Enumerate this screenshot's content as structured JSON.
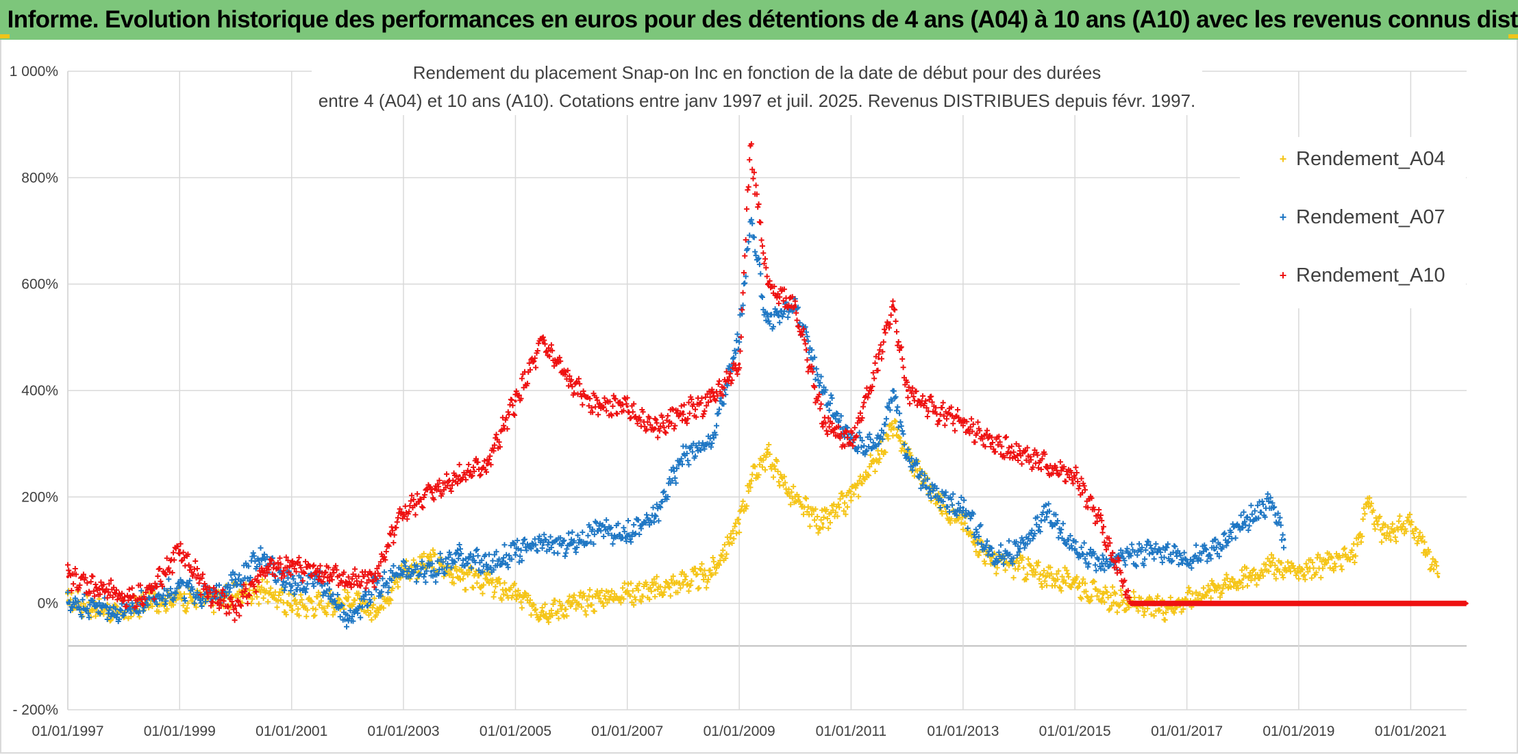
{
  "banner": {
    "text": "ADAM Informe. Evolution historique des performances en euros pour des détentions de 4 ans (A04) à 10 ans (A10) avec les revenus connus distribués"
  },
  "colors": {
    "A04": "#f5c518",
    "A07": "#1f77c4",
    "A10": "#ee1111",
    "banner": "#7dc67b",
    "grid": "#d9d9d9"
  },
  "chart_data": {
    "type": "scatter",
    "title_lines": [
      "Rendement du placement Snap-on Inc en fonction de la date de début pour des durées",
      "entre 4 (A04) et 10 ans (A10). Cotations entre janv 1997 et juil. 2025. Revenus DISTRIBUES depuis févr. 1997."
    ],
    "xlabel": "",
    "ylabel": "",
    "x_range": [
      "1997-01-01",
      "2022-01-01"
    ],
    "x_ticks": [
      "01/01/1997",
      "01/01/1999",
      "01/01/2001",
      "01/01/2003",
      "01/01/2005",
      "01/01/2007",
      "01/01/2009",
      "01/01/2011",
      "01/01/2013",
      "01/01/2015",
      "01/01/2017",
      "01/01/2019",
      "01/01/2021"
    ],
    "y_range": [
      -200,
      1000
    ],
    "y_ticks": [
      {
        "value": -200,
        "label": "- 200%"
      },
      {
        "value": 0,
        "label": "0%"
      },
      {
        "value": 200,
        "label": "200%"
      },
      {
        "value": 400,
        "label": "400%"
      },
      {
        "value": 600,
        "label": "600%"
      },
      {
        "value": 800,
        "label": "800%"
      },
      {
        "value": 1000,
        "label": "1 000%"
      }
    ],
    "grid": true,
    "legend_position": "top-right",
    "marker": "+",
    "series": [
      {
        "name": "Rendement_A04",
        "color": "#f5c518",
        "points": [
          [
            "1997-01-01",
            5
          ],
          [
            "1997-07-01",
            -10
          ],
          [
            "1998-01-01",
            -20
          ],
          [
            "1998-07-01",
            5
          ],
          [
            "1999-01-01",
            10
          ],
          [
            "1999-07-01",
            5
          ],
          [
            "2000-01-01",
            15
          ],
          [
            "2000-07-01",
            25
          ],
          [
            "2001-01-01",
            -5
          ],
          [
            "2001-07-01",
            0
          ],
          [
            "2002-01-01",
            5
          ],
          [
            "2002-07-01",
            -15
          ],
          [
            "2003-01-01",
            60
          ],
          [
            "2003-07-01",
            80
          ],
          [
            "2004-01-01",
            50
          ],
          [
            "2004-07-01",
            40
          ],
          [
            "2005-01-01",
            15
          ],
          [
            "2005-07-01",
            -15
          ],
          [
            "2006-01-01",
            -5
          ],
          [
            "2006-07-01",
            10
          ],
          [
            "2007-01-01",
            20
          ],
          [
            "2007-07-01",
            25
          ],
          [
            "2008-01-01",
            40
          ],
          [
            "2008-07-01",
            55
          ],
          [
            "2009-01-01",
            150
          ],
          [
            "2009-03-15",
            230
          ],
          [
            "2009-07-01",
            280
          ],
          [
            "2010-01-01",
            190
          ],
          [
            "2010-07-01",
            150
          ],
          [
            "2011-01-01",
            200
          ],
          [
            "2011-07-01",
            280
          ],
          [
            "2011-10-01",
            330
          ],
          [
            "2012-01-01",
            280
          ],
          [
            "2012-07-01",
            200
          ],
          [
            "2013-01-01",
            150
          ],
          [
            "2013-07-01",
            80
          ],
          [
            "2014-01-01",
            70
          ],
          [
            "2014-07-01",
            50
          ],
          [
            "2015-01-01",
            40
          ],
          [
            "2015-07-01",
            10
          ],
          [
            "2016-01-01",
            0
          ],
          [
            "2016-07-01",
            -10
          ],
          [
            "2017-01-01",
            5
          ],
          [
            "2017-07-01",
            30
          ],
          [
            "2018-01-01",
            45
          ],
          [
            "2018-07-01",
            70
          ],
          [
            "2019-01-01",
            60
          ],
          [
            "2019-07-01",
            75
          ],
          [
            "2020-01-01",
            90
          ],
          [
            "2020-04-01",
            190
          ],
          [
            "2020-07-01",
            130
          ],
          [
            "2021-01-01",
            150
          ],
          [
            "2021-04-01",
            100
          ],
          [
            "2021-07-01",
            50
          ]
        ]
      },
      {
        "name": "Rendement_A07",
        "color": "#1f77c4",
        "points": [
          [
            "1997-01-01",
            0
          ],
          [
            "1997-07-01",
            -5
          ],
          [
            "1998-01-01",
            -20
          ],
          [
            "1998-07-01",
            10
          ],
          [
            "1999-01-01",
            30
          ],
          [
            "1999-07-01",
            10
          ],
          [
            "2000-01-01",
            40
          ],
          [
            "2000-07-01",
            90
          ],
          [
            "2001-01-01",
            30
          ],
          [
            "2001-07-01",
            45
          ],
          [
            "2002-01-01",
            -30
          ],
          [
            "2002-07-01",
            30
          ],
          [
            "2003-01-01",
            60
          ],
          [
            "2003-07-01",
            60
          ],
          [
            "2004-01-01",
            90
          ],
          [
            "2004-07-01",
            70
          ],
          [
            "2005-01-01",
            95
          ],
          [
            "2005-07-01",
            110
          ],
          [
            "2006-01-01",
            110
          ],
          [
            "2006-07-01",
            140
          ],
          [
            "2007-01-01",
            130
          ],
          [
            "2007-07-01",
            160
          ],
          [
            "2008-01-01",
            280
          ],
          [
            "2008-07-01",
            300
          ],
          [
            "2009-01-01",
            500
          ],
          [
            "2009-03-15",
            720
          ],
          [
            "2009-07-01",
            530
          ],
          [
            "2010-01-01",
            560
          ],
          [
            "2010-07-01",
            400
          ],
          [
            "2011-01-01",
            300
          ],
          [
            "2011-07-01",
            300
          ],
          [
            "2011-10-01",
            400
          ],
          [
            "2012-01-01",
            280
          ],
          [
            "2012-07-01",
            200
          ],
          [
            "2013-01-01",
            180
          ],
          [
            "2013-07-01",
            90
          ],
          [
            "2014-01-01",
            100
          ],
          [
            "2014-07-01",
            170
          ],
          [
            "2015-01-01",
            100
          ],
          [
            "2015-07-01",
            70
          ],
          [
            "2016-01-01",
            90
          ],
          [
            "2016-07-01",
            100
          ],
          [
            "2017-01-01",
            80
          ],
          [
            "2017-07-01",
            100
          ],
          [
            "2018-01-01",
            150
          ],
          [
            "2018-07-01",
            190
          ],
          [
            "2018-10-01",
            120
          ]
        ]
      },
      {
        "name": "Rendement_A10",
        "color": "#ee1111",
        "points": [
          [
            "1997-01-01",
            50
          ],
          [
            "1997-07-01",
            30
          ],
          [
            "1998-01-01",
            10
          ],
          [
            "1998-07-01",
            20
          ],
          [
            "1999-01-01",
            100
          ],
          [
            "1999-07-01",
            20
          ],
          [
            "2000-01-01",
            -10
          ],
          [
            "2000-07-01",
            60
          ],
          [
            "2001-01-01",
            70
          ],
          [
            "2001-07-01",
            60
          ],
          [
            "2002-01-01",
            40
          ],
          [
            "2002-07-01",
            50
          ],
          [
            "2003-01-01",
            170
          ],
          [
            "2003-07-01",
            210
          ],
          [
            "2004-01-01",
            240
          ],
          [
            "2004-07-01",
            260
          ],
          [
            "2005-01-01",
            380
          ],
          [
            "2005-07-01",
            490
          ],
          [
            "2006-01-01",
            410
          ],
          [
            "2006-07-01",
            370
          ],
          [
            "2007-01-01",
            370
          ],
          [
            "2007-07-01",
            330
          ],
          [
            "2008-01-01",
            360
          ],
          [
            "2008-07-01",
            380
          ],
          [
            "2009-01-01",
            450
          ],
          [
            "2009-03-15",
            860
          ],
          [
            "2009-07-01",
            600
          ],
          [
            "2010-01-01",
            560
          ],
          [
            "2010-07-01",
            340
          ],
          [
            "2011-01-01",
            300
          ],
          [
            "2011-07-01",
            460
          ],
          [
            "2011-10-01",
            560
          ],
          [
            "2012-01-01",
            400
          ],
          [
            "2012-07-01",
            360
          ],
          [
            "2013-01-01",
            340
          ],
          [
            "2013-07-01",
            300
          ],
          [
            "2014-01-01",
            280
          ],
          [
            "2014-07-01",
            260
          ],
          [
            "2015-01-01",
            240
          ],
          [
            "2015-07-01",
            140
          ],
          [
            "2016-01-01",
            0
          ],
          [
            "2016-07-01",
            0
          ],
          [
            "2017-01-01",
            0
          ],
          [
            "2018-01-01",
            0
          ],
          [
            "2019-01-01",
            0
          ],
          [
            "2020-01-01",
            0
          ],
          [
            "2021-01-01",
            0
          ],
          [
            "2022-01-01",
            0
          ]
        ]
      }
    ]
  }
}
